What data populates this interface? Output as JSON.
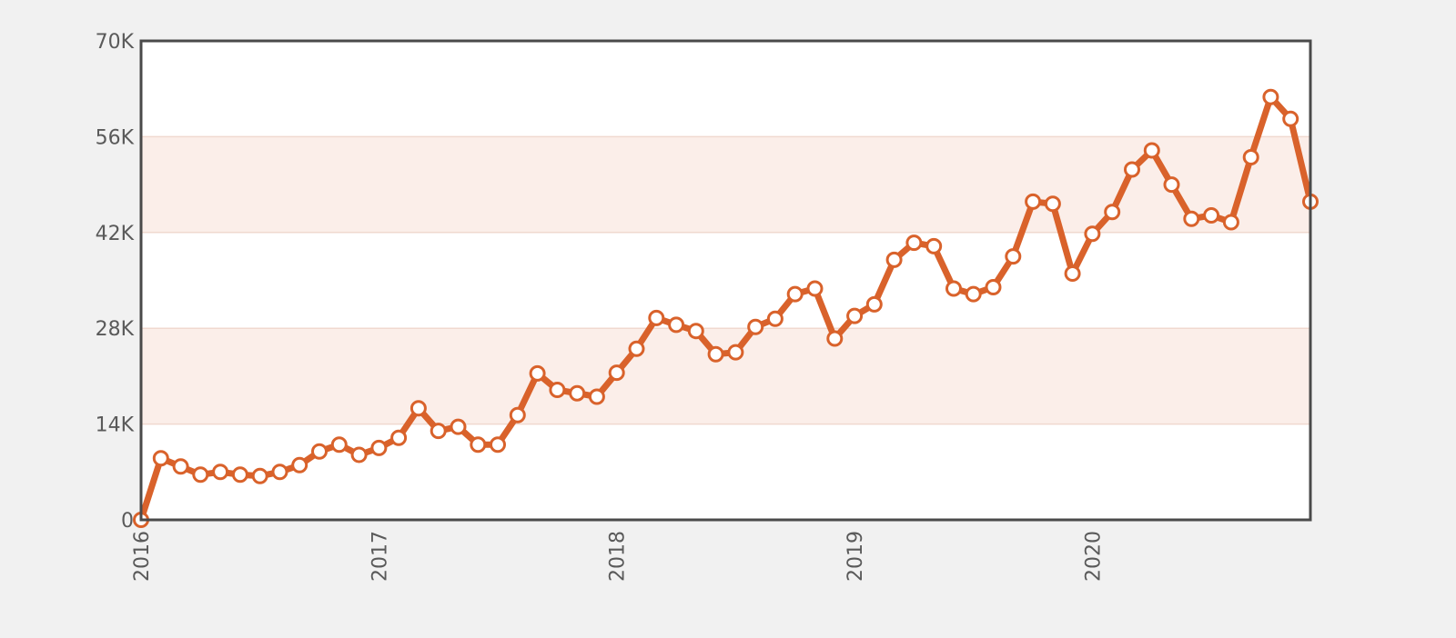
{
  "chart_data": {
    "type": "line",
    "title": "",
    "xlabel": "",
    "ylabel": "",
    "x_tick_labels": [
      "2016",
      "2017",
      "2018",
      "2019",
      "2020"
    ],
    "y_tick_labels": [
      "0",
      "14K",
      "28K",
      "42K",
      "56K",
      "70K"
    ],
    "y_ticks": [
      0,
      14000,
      28000,
      42000,
      56000,
      70000
    ],
    "ylim": [
      0,
      70000
    ],
    "xlim": [
      "2016-01",
      "2020-12"
    ],
    "grid": "horizontal",
    "band_color": "#fbeee9",
    "line_color": "#d9622b",
    "marker_fill": "#ffffff",
    "x": [
      "2016-01",
      "2016-02",
      "2016-03",
      "2016-04",
      "2016-05",
      "2016-06",
      "2016-07",
      "2016-08",
      "2016-09",
      "2016-10",
      "2016-11",
      "2016-12",
      "2017-01",
      "2017-02",
      "2017-03",
      "2017-04",
      "2017-05",
      "2017-06",
      "2017-07",
      "2017-08",
      "2017-09",
      "2017-10",
      "2017-11",
      "2017-12",
      "2018-01",
      "2018-02",
      "2018-03",
      "2018-04",
      "2018-05",
      "2018-06",
      "2018-07",
      "2018-08",
      "2018-09",
      "2018-10",
      "2018-11",
      "2018-12",
      "2019-01",
      "2019-02",
      "2019-03",
      "2019-04",
      "2019-05",
      "2019-06",
      "2019-07",
      "2019-08",
      "2019-09",
      "2019-10",
      "2019-11",
      "2019-12",
      "2020-01",
      "2020-02",
      "2020-03",
      "2020-04",
      "2020-05",
      "2020-06",
      "2020-07",
      "2020-08",
      "2020-09",
      "2020-10",
      "2020-11",
      "2020-12"
    ],
    "series": [
      {
        "values": [
          0,
          9000,
          7800,
          6600,
          7000,
          6600,
          6400,
          7000,
          8000,
          10000,
          11000,
          9500,
          10500,
          12000,
          16300,
          13000,
          13600,
          11000,
          11000,
          15300,
          21400,
          19000,
          18500,
          18000,
          21500,
          25000,
          29500,
          28500,
          27600,
          24200,
          24500,
          28200,
          29400,
          33000,
          33800,
          26500,
          29800,
          31500,
          38000,
          40500,
          40000,
          33800,
          33000,
          34000,
          38500,
          46500,
          46200,
          36000,
          41800,
          45000,
          51200,
          54000,
          49000,
          44000,
          44500,
          43500,
          53000,
          61800,
          58600,
          46500
        ]
      }
    ]
  }
}
